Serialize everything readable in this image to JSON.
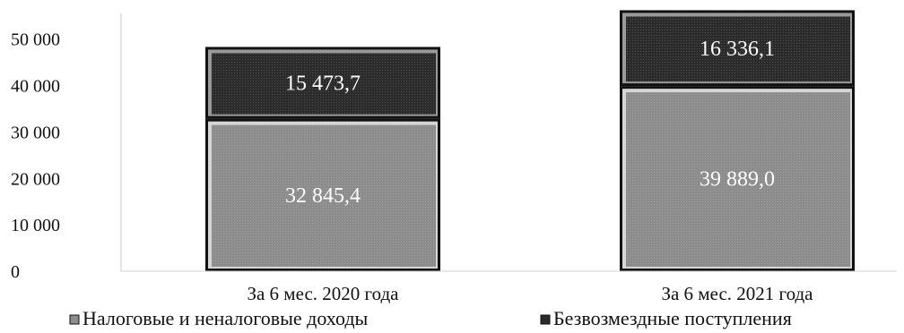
{
  "chart_data": {
    "type": "bar",
    "stacked": true,
    "categories": [
      "За 6 мес. 2020 года",
      "За 6 мес. 2021 года"
    ],
    "series": [
      {
        "name": "Налоговые и неналоговые доходы",
        "values": [
          32845.4,
          39889.0
        ],
        "labels": [
          "32 845,4",
          "39 889,0"
        ],
        "color": "#8c8c8c"
      },
      {
        "name": "Безвозмездные поступления",
        "values": [
          15473.7,
          16336.1
        ],
        "labels": [
          "15 473,7",
          "16 336,1"
        ],
        "color": "#2b2b2b"
      }
    ],
    "y_ticks": [
      0,
      10000,
      20000,
      30000,
      40000,
      50000
    ],
    "y_tick_labels": [
      "0",
      "10 000",
      "20 000",
      "30 000",
      "40 000",
      "50 000"
    ],
    "ylim": [
      0,
      56500
    ],
    "title": "",
    "xlabel": "",
    "ylabel": "",
    "grid": false,
    "legend_position": "bottom"
  }
}
